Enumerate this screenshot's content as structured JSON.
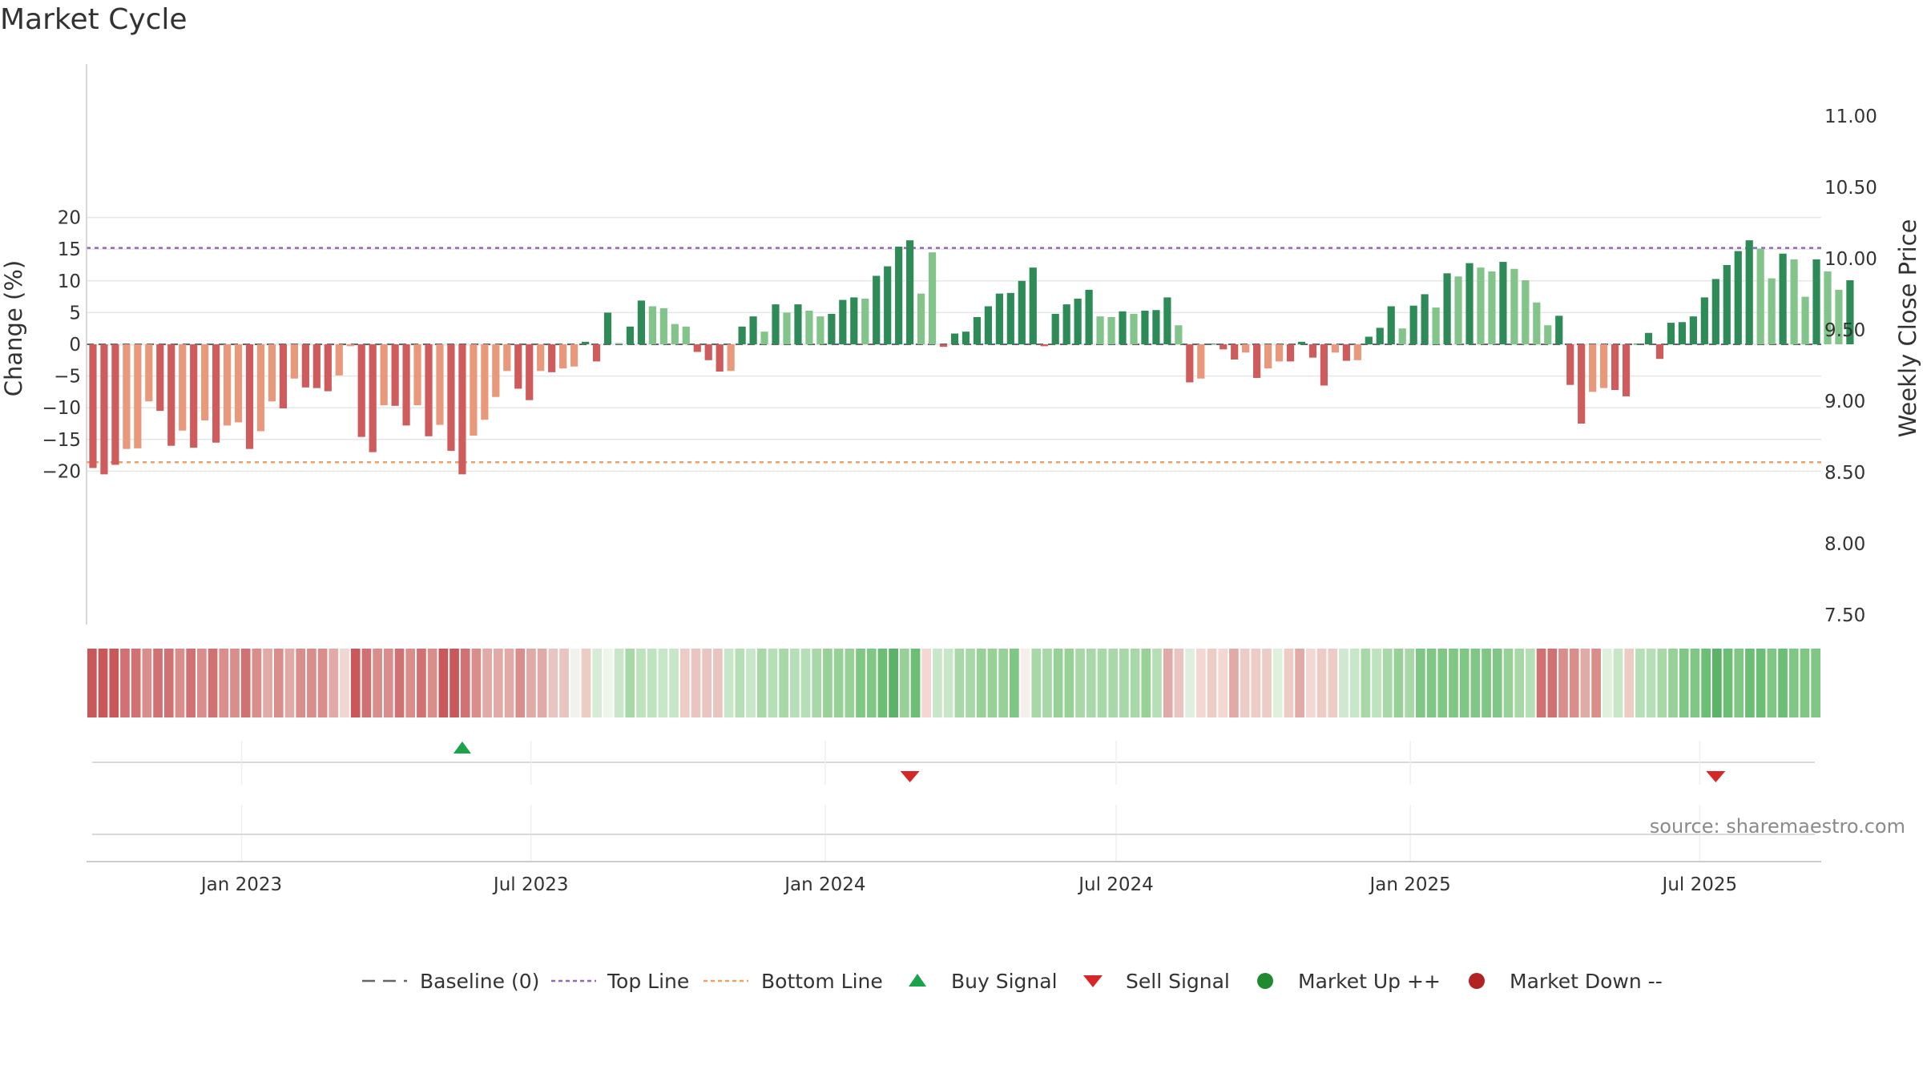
{
  "chart_data": {
    "type": "bar",
    "title": "Market Cycle",
    "ylabel": "Change (%)",
    "y2label": "Weekly Close Price",
    "ylim": [
      -22,
      22
    ],
    "yticks": [
      20,
      15,
      10,
      5,
      0,
      -5,
      -10,
      -15,
      -20
    ],
    "ytick_labels": [
      "20",
      "15",
      "10",
      "5",
      "0",
      "−5",
      "−10",
      "−15",
      "−20"
    ],
    "y2lim": [
      7.35,
      11.25
    ],
    "y2ticks": [
      11.0,
      10.5,
      10.0,
      9.5,
      9.0,
      8.5,
      8.0,
      7.5
    ],
    "y2tick_labels": [
      "11.00",
      "10.50",
      "10.00",
      "9.50",
      "9.00",
      "8.50",
      "8.00",
      "7.50"
    ],
    "x_range": [
      "2022-09-26",
      "2025-09-15"
    ],
    "xticks": [
      {
        "date": "2023-01-01",
        "label": "Jan 2023"
      },
      {
        "date": "2023-07-01",
        "label": "Jul 2023"
      },
      {
        "date": "2024-01-01",
        "label": "Jan 2024"
      },
      {
        "date": "2024-07-01",
        "label": "Jul 2024"
      },
      {
        "date": "2025-01-01",
        "label": "Jan 2025"
      },
      {
        "date": "2025-07-01",
        "label": "Jul 2025"
      }
    ],
    "first_week": "2022-09-30",
    "week_step_days": 7,
    "values": [
      -19.5,
      -20.5,
      -19.0,
      -16.5,
      -16.4,
      -9.0,
      -10.5,
      -16.0,
      -13.6,
      -16.3,
      -12.0,
      -15.5,
      -12.8,
      -12.3,
      -16.5,
      -13.7,
      -9.0,
      -10.1,
      -5.4,
      -6.8,
      -6.9,
      -7.4,
      -4.9,
      -0.3,
      -14.6,
      -17.0,
      -9.6,
      -9.7,
      -12.8,
      -9.6,
      -14.5,
      -12.7,
      -16.8,
      -20.5,
      -14.4,
      -11.9,
      -8.3,
      -4.2,
      -7.0,
      -8.8,
      -4.2,
      -4.4,
      -3.8,
      -3.5,
      0.4,
      -2.7,
      5.0,
      0.2,
      2.8,
      6.9,
      6.0,
      5.7,
      3.2,
      2.8,
      -1.2,
      -2.5,
      -4.3,
      -4.2,
      2.8,
      4.4,
      2.0,
      6.3,
      5.0,
      6.3,
      5.3,
      4.4,
      4.8,
      7.0,
      7.4,
      7.2,
      10.8,
      12.3,
      15.4,
      16.4,
      8.0,
      14.5,
      -0.4,
      1.7,
      2.0,
      4.3,
      6.0,
      8.0,
      8.1,
      10.0,
      12.1,
      -0.3,
      4.8,
      6.3,
      7.2,
      8.6,
      4.4,
      4.3,
      5.2,
      4.8,
      5.3,
      5.4,
      7.4,
      3.0,
      -6.0,
      -5.4,
      0.1,
      -0.8,
      -2.4,
      -1.3,
      -5.3,
      -3.8,
      -2.7,
      -2.7,
      0.4,
      -2.1,
      -6.5,
      -1.3,
      -2.6,
      -2.5,
      1.2,
      2.6,
      6.0,
      2.5,
      6.1,
      7.9,
      5.8,
      11.2,
      10.7,
      12.8,
      12.1,
      11.5,
      13.0,
      11.9,
      10.1,
      6.6,
      3.0,
      4.5,
      -6.4,
      -12.5,
      -7.5,
      -6.9,
      -7.2,
      -8.2,
      0.1,
      1.8,
      -2.3,
      3.4,
      3.5,
      4.4,
      7.4,
      10.3,
      12.5,
      14.7,
      16.4,
      15.1,
      10.4,
      14.3,
      13.4,
      7.5,
      13.4,
      11.5,
      8.6,
      10.1
    ],
    "bar_fill": [
      "#cf5c5c",
      "#cf5c5c",
      "#cf5c5c",
      "#e8987b",
      "#e8987b",
      "#e8987b",
      "#cf5c5c",
      "#cf5c5c",
      "#e8987b",
      "#cf5c5c",
      "#e8987b",
      "#cf5c5c",
      "#e8987b",
      "#e8987b",
      "#cf5c5c",
      "#e8987b",
      "#e8987b",
      "#cf5c5c",
      "#e8987b",
      "#cf5c5c",
      "#cf5c5c",
      "#cf5c5c",
      "#e8987b",
      "#e8987b",
      "#cf5c5c",
      "#cf5c5c",
      "#e8987b",
      "#cf5c5c",
      "#cf5c5c",
      "#e8987b",
      "#cf5c5c",
      "#e8987b",
      "#cf5c5c",
      "#cf5c5c",
      "#e8987b",
      "#e8987b",
      "#e8987b",
      "#e8987b",
      "#cf5c5c",
      "#cf5c5c",
      "#e8987b",
      "#cf5c5c",
      "#e8987b",
      "#e8987b",
      "#2e8b57",
      "#cf5c5c",
      "#2e8b57",
      "#82c48a",
      "#2e8b57",
      "#2e8b57",
      "#82c48a",
      "#82c48a",
      "#82c48a",
      "#82c48a",
      "#cf5c5c",
      "#cf5c5c",
      "#cf5c5c",
      "#e8987b",
      "#2e8b57",
      "#2e8b57",
      "#82c48a",
      "#2e8b57",
      "#82c48a",
      "#2e8b57",
      "#82c48a",
      "#82c48a",
      "#2e8b57",
      "#2e8b57",
      "#2e8b57",
      "#82c48a",
      "#2e8b57",
      "#2e8b57",
      "#2e8b57",
      "#2e8b57",
      "#82c48a",
      "#82c48a",
      "#cf5c5c",
      "#2e8b57",
      "#2e8b57",
      "#2e8b57",
      "#2e8b57",
      "#2e8b57",
      "#2e8b57",
      "#2e8b57",
      "#2e8b57",
      "#cf5c5c",
      "#2e8b57",
      "#2e8b57",
      "#2e8b57",
      "#2e8b57",
      "#82c48a",
      "#82c48a",
      "#2e8b57",
      "#82c48a",
      "#2e8b57",
      "#2e8b57",
      "#2e8b57",
      "#82c48a",
      "#cf5c5c",
      "#e8987b",
      "#2e8b57",
      "#cf5c5c",
      "#cf5c5c",
      "#e8987b",
      "#cf5c5c",
      "#e8987b",
      "#e8987b",
      "#cf5c5c",
      "#2e8b57",
      "#cf5c5c",
      "#cf5c5c",
      "#e8987b",
      "#cf5c5c",
      "#e8987b",
      "#2e8b57",
      "#2e8b57",
      "#2e8b57",
      "#82c48a",
      "#2e8b57",
      "#2e8b57",
      "#82c48a",
      "#2e8b57",
      "#82c48a",
      "#2e8b57",
      "#82c48a",
      "#82c48a",
      "#2e8b57",
      "#82c48a",
      "#82c48a",
      "#82c48a",
      "#82c48a",
      "#2e8b57",
      "#cf5c5c",
      "#cf5c5c",
      "#e8987b",
      "#e8987b",
      "#cf5c5c",
      "#cf5c5c",
      "#2e8b57",
      "#2e8b57",
      "#cf5c5c",
      "#2e8b57",
      "#2e8b57",
      "#2e8b57",
      "#2e8b57",
      "#2e8b57",
      "#2e8b57",
      "#2e8b57",
      "#2e8b57",
      "#82c48a",
      "#82c48a",
      "#2e8b57",
      "#82c48a",
      "#82c48a",
      "#2e8b57",
      "#82c48a",
      "#82c48a",
      "#2e8b57"
    ],
    "strip_colors": [
      "#c9585a",
      "#c9585a",
      "#c9585a",
      "#d07273",
      "#d07273",
      "#d98e8c",
      "#d07273",
      "#d07273",
      "#d98e8c",
      "#d07273",
      "#d98e8c",
      "#d07273",
      "#d98e8c",
      "#d98e8c",
      "#d07273",
      "#d98e8c",
      "#e0aaa6",
      "#d98e8c",
      "#e0aaa6",
      "#d98e8c",
      "#d98e8c",
      "#d98e8c",
      "#e0aaa6",
      "#f0d6d2",
      "#c9585a",
      "#d07273",
      "#d98e8c",
      "#d98e8c",
      "#d07273",
      "#d98e8c",
      "#d07273",
      "#d98e8c",
      "#c9585a",
      "#c9585a",
      "#d07273",
      "#d98e8c",
      "#e0aaa6",
      "#e0aaa6",
      "#e0aaa6",
      "#d98e8c",
      "#e0aaa6",
      "#e0aaa6",
      "#e8c5c0",
      "#e8c5c0",
      "#f2f2ec",
      "#eeccc6",
      "#d6ecd6",
      "#eef6ec",
      "#c8e6c8",
      "#a8d8a8",
      "#bfe2bf",
      "#bfe2bf",
      "#c8e6c8",
      "#c8e6c8",
      "#eeccc6",
      "#e8c5c0",
      "#e8c5c0",
      "#e8c5c0",
      "#c8e6c8",
      "#b7dfb7",
      "#c8e6c8",
      "#a8d8a8",
      "#b7dfb7",
      "#a8d8a8",
      "#b7dfb7",
      "#b7dfb7",
      "#a8d8a8",
      "#98d198",
      "#98d198",
      "#98d198",
      "#80c684",
      "#80c684",
      "#6cbe74",
      "#5bb268",
      "#98d198",
      "#6cbe74",
      "#f2d7d2",
      "#c8e6c8",
      "#c8e6c8",
      "#a8d8a8",
      "#a8d8a8",
      "#98d198",
      "#98d198",
      "#98d198",
      "#80c684",
      "#f6eeea",
      "#a8d8a8",
      "#a8d8a8",
      "#98d198",
      "#98d198",
      "#a8d8a8",
      "#a8d8a8",
      "#a8d8a8",
      "#a8d8a8",
      "#a8d8a8",
      "#a8d8a8",
      "#98d198",
      "#b7dfb7",
      "#e0aaa6",
      "#e8c5c0",
      "#e0eee0",
      "#f2d7d2",
      "#eeccc6",
      "#f2d7d2",
      "#e0aaa6",
      "#eeccc6",
      "#eeccc6",
      "#eeccc6",
      "#dff0dc",
      "#eeccc6",
      "#e0aaa6",
      "#f2d7d2",
      "#eeccc6",
      "#eeccc6",
      "#cfe8cf",
      "#c8e6c8",
      "#a8d8a8",
      "#bfe2bf",
      "#a8d8a8",
      "#98d198",
      "#a8d8a8",
      "#80c684",
      "#80c684",
      "#80c684",
      "#80c684",
      "#80c684",
      "#80c684",
      "#80c684",
      "#80c684",
      "#98d198",
      "#a8d8a8",
      "#b7dfb7",
      "#d07273",
      "#d07273",
      "#d98e8c",
      "#d98e8c",
      "#e0aaa6",
      "#d98e8c",
      "#dff0dc",
      "#c8e6c8",
      "#eeccc6",
      "#b7dfb7",
      "#b7dfb7",
      "#a8d8a8",
      "#98d198",
      "#80c684",
      "#80c684",
      "#6cbe74",
      "#5bb268",
      "#6cbe74",
      "#80c684",
      "#6cbe74",
      "#6cbe74",
      "#80c684",
      "#6cbe74",
      "#80c684",
      "#80c684",
      "#80c684"
    ],
    "top_line": 15.2,
    "bottom_line": -18.6,
    "baseline": 0,
    "buy_signals": [
      "2023-05-19"
    ],
    "sell_signals": [
      "2024-02-23",
      "2025-07-11"
    ],
    "grid": true,
    "legend": "bottom-center",
    "colors": {
      "bar_strong_up": "#2e8b57",
      "bar_mild_up": "#82c48a",
      "bar_strong_down": "#cf5c5c",
      "bar_mild_down": "#e8987b",
      "top_line": "#9467bd",
      "bottom_line": "#f0a060",
      "baseline": "#666666",
      "buy_signal": "#1aa34a",
      "sell_signal": "#d62728",
      "market_up": "#1f8a2e",
      "market_down": "#b22222"
    },
    "legend_entries": [
      {
        "label": "Baseline (0)",
        "marker": "dash"
      },
      {
        "label": "Top Line",
        "marker": "dotted-purple"
      },
      {
        "label": "Bottom Line",
        "marker": "dotted-orange"
      },
      {
        "label": "Buy Signal",
        "marker": "triangle-up"
      },
      {
        "label": "Sell Signal",
        "marker": "triangle-down"
      },
      {
        "label": "Market Up ++",
        "marker": "circle-green"
      },
      {
        "label": "Market Down --",
        "marker": "circle-red"
      }
    ],
    "source": "source: sharemaestro.com"
  }
}
